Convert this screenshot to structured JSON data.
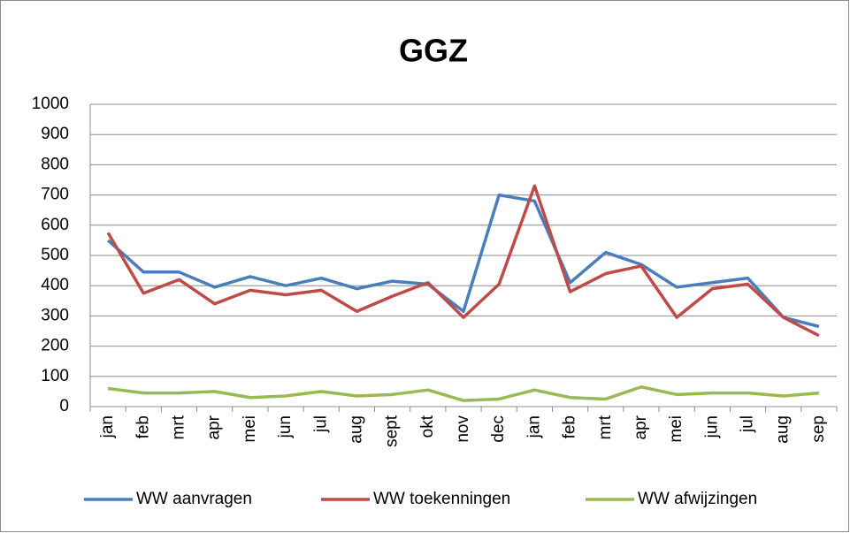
{
  "chart_data": {
    "type": "line",
    "title": "GGZ",
    "categories": [
      "jan",
      "feb",
      "mrt",
      "apr",
      "mei",
      "jun",
      "jul",
      "aug",
      "sept",
      "okt",
      "nov",
      "dec",
      "jan",
      "feb",
      "mrt",
      "apr",
      "mei",
      "jun",
      "jul",
      "aug",
      "sep"
    ],
    "series": [
      {
        "name": "WW aanvragen",
        "color": "#4a7ebb",
        "values": [
          550,
          445,
          445,
          395,
          430,
          400,
          425,
          390,
          415,
          405,
          315,
          700,
          680,
          410,
          510,
          470,
          395,
          410,
          425,
          295,
          265
        ]
      },
      {
        "name": "WW toekenningen",
        "color": "#be4b48",
        "values": [
          575,
          375,
          420,
          340,
          385,
          370,
          385,
          315,
          365,
          410,
          295,
          405,
          730,
          380,
          440,
          465,
          295,
          390,
          405,
          295,
          235
        ]
      },
      {
        "name": "WW afwijzingen",
        "color": "#98b954",
        "values": [
          60,
          45,
          45,
          50,
          30,
          35,
          50,
          35,
          40,
          55,
          20,
          25,
          55,
          30,
          25,
          65,
          40,
          45,
          45,
          35,
          45
        ]
      }
    ],
    "ylim": [
      0,
      1000
    ],
    "yticks": [
      0,
      100,
      200,
      300,
      400,
      500,
      600,
      700,
      800,
      900,
      1000
    ],
    "grid": true,
    "legend": "bottom"
  }
}
